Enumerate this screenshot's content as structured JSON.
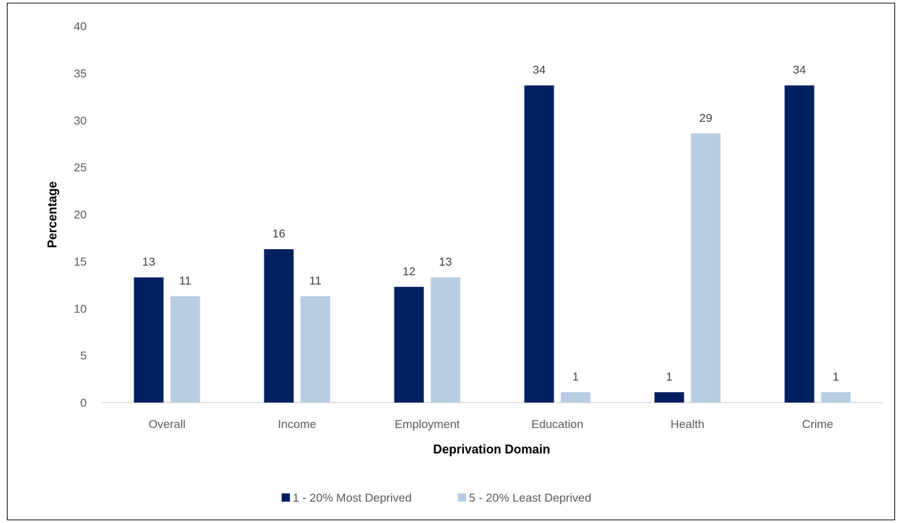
{
  "chart_data": {
    "type": "bar",
    "title": "",
    "xlabel": "Deprivation Domain",
    "ylabel": "Percentage",
    "ylim": [
      0,
      40
    ],
    "yticks": [
      0,
      5,
      10,
      15,
      20,
      25,
      30,
      35,
      40
    ],
    "grid": false,
    "legend_position": "bottom",
    "categories": [
      "Overall",
      "Income",
      "Employment",
      "Education",
      "Health",
      "Crime"
    ],
    "series": [
      {
        "name": "1 - 20% Most Deprived",
        "color": "#002060",
        "values": [
          13.3,
          16.3,
          12.3,
          33.7,
          1.1,
          33.7
        ],
        "labels": [
          "13",
          "16",
          "12",
          "34",
          "1",
          "34"
        ]
      },
      {
        "name": "5 - 20% Least Deprived",
        "color": "#B8CCE4",
        "values": [
          11.3,
          11.3,
          13.3,
          1.1,
          28.6,
          1.1
        ],
        "labels": [
          "11",
          "11",
          "13",
          "1",
          "29",
          "1"
        ]
      }
    ]
  }
}
